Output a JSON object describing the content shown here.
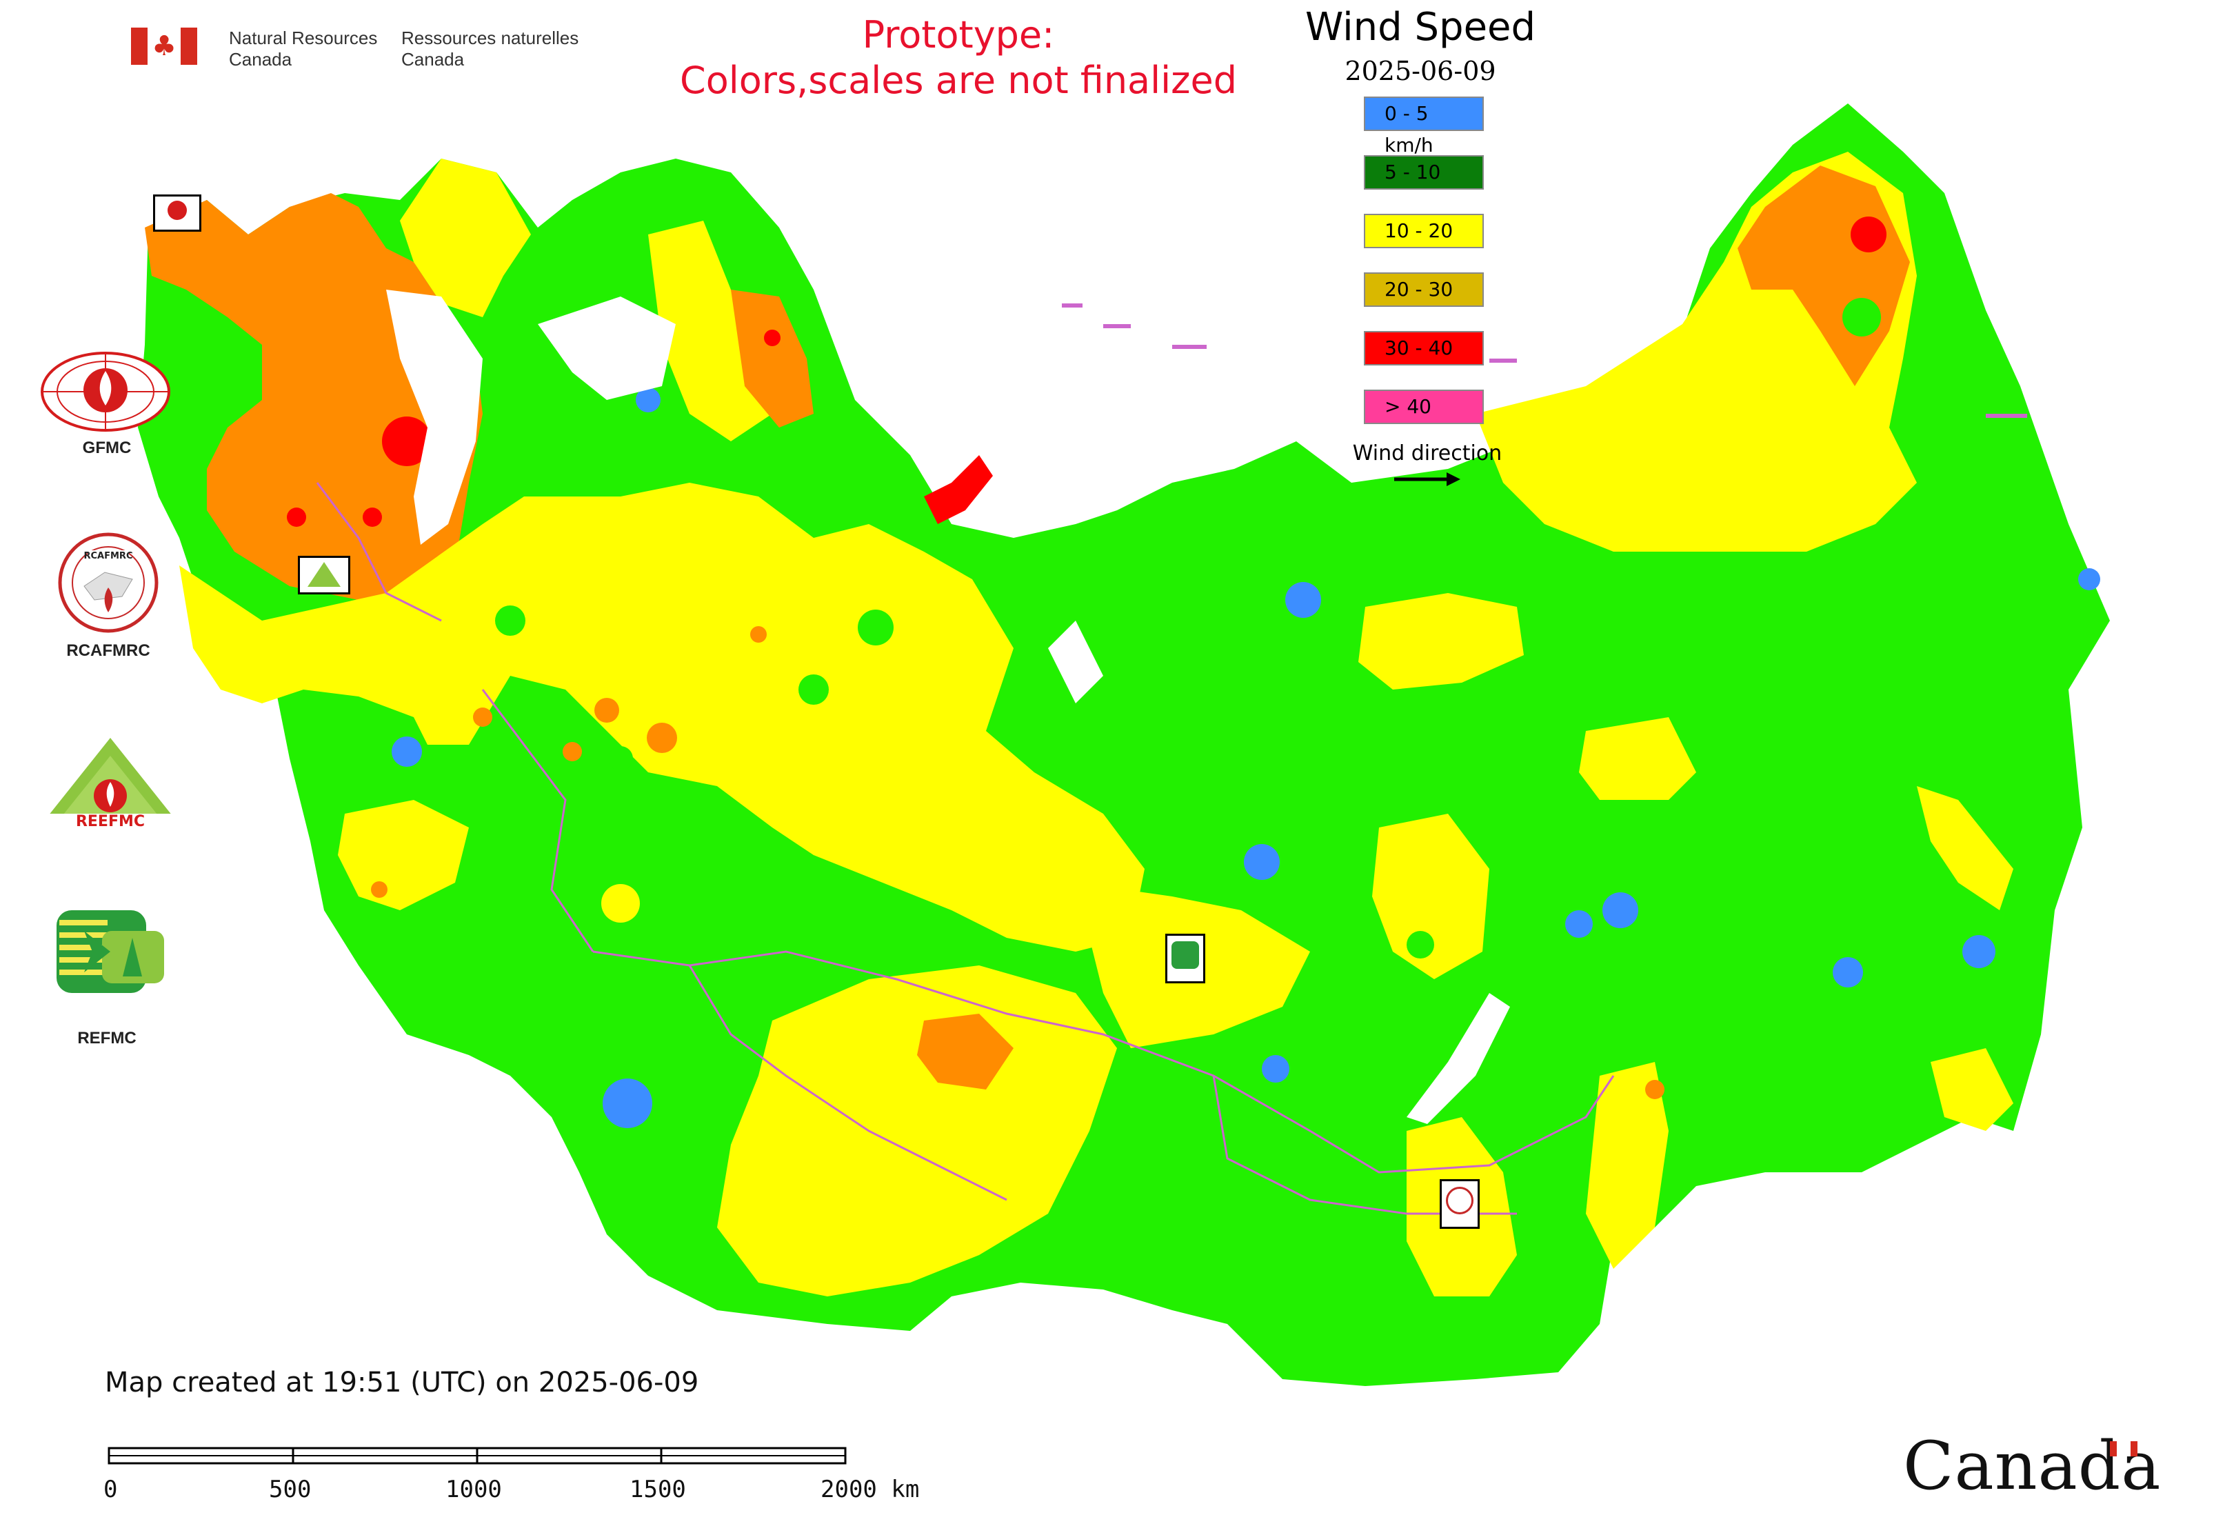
{
  "header": {
    "org_en_line1": "Natural Resources",
    "org_en_line2": "Canada",
    "org_fr_line1": "Ressources naturelles",
    "org_fr_line2": "Canada",
    "flag_icon": "canada-flag-icon"
  },
  "prototype_note": {
    "line1": "Prototype:",
    "line2": "Colors,scales are not finalized",
    "color": "#e8112d"
  },
  "map": {
    "title": "Wind Speed",
    "date": "2025-06-09",
    "legend": [
      {
        "label": "0 - 5 km/h",
        "color": "#3d8eff"
      },
      {
        "label": "5 - 10",
        "color": "#0a7d0a"
      },
      {
        "label": "10 - 20",
        "color": "#ffff00"
      },
      {
        "label": "20 - 30",
        "color": "#d9b800"
      },
      {
        "label": "30 - 40",
        "color": "#ff0000"
      },
      {
        "label": "> 40",
        "color": "#ff3d9a"
      }
    ],
    "wind_direction_label": "Wind direction",
    "wind_direction_icon": "arrow-right-icon",
    "map_colors": {
      "calm": "#3d8eff",
      "light": "#22f000",
      "moderate": "#ffff00",
      "fresh": "#ff8c00",
      "strong": "#ff0000",
      "water": "#ffffff",
      "borders": "#cc66cc"
    }
  },
  "side_logos": [
    {
      "label": "GFMC",
      "icon": "gfmc-logo"
    },
    {
      "label": "RCAFMRC",
      "icon": "rcafmrc-logo"
    },
    {
      "label": "",
      "icon": "reefmc-logo",
      "wordmark": "REEFMC"
    },
    {
      "label": "REFMC",
      "icon": "refmc-logo"
    }
  ],
  "footer": {
    "created_text": "Map created at 19:51 (UTC) on 2025-06-09",
    "scale_labels": [
      "0",
      "500",
      "1000",
      "1500",
      "2000 km"
    ],
    "wordmark": "Canada"
  }
}
